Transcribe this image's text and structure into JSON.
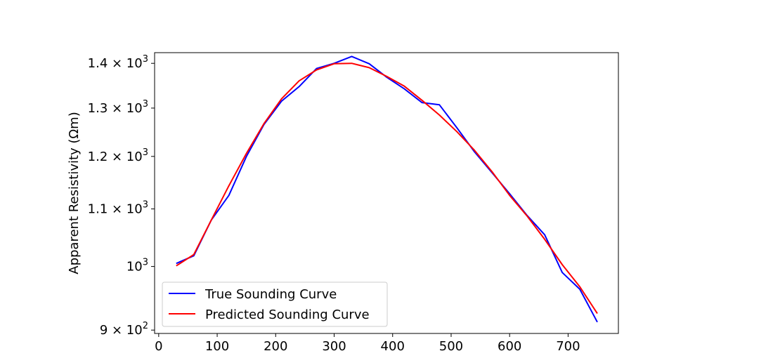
{
  "chart_data": {
    "type": "line",
    "ylabel": "Apparent Resistivity (Ωm)",
    "yscale": "log",
    "xlim": [
      -7,
      786
    ],
    "ylim": [
      895,
      1425
    ],
    "x_ticks": [
      0,
      100,
      200,
      300,
      400,
      500,
      600,
      700
    ],
    "y_ticks": [
      {
        "value": 900,
        "mant": "9",
        "exp": "2"
      },
      {
        "value": 1000,
        "mant": "",
        "exp": "3"
      },
      {
        "value": 1100,
        "mant": "1.1",
        "exp": "3"
      },
      {
        "value": 1200,
        "mant": "1.2",
        "exp": "3"
      },
      {
        "value": 1300,
        "mant": "1.3",
        "exp": "3"
      },
      {
        "value": 1400,
        "mant": "1.4",
        "exp": "3"
      }
    ],
    "grid": false,
    "legend_position": "lower-left",
    "series": [
      {
        "name": "True Sounding Curve",
        "color": "#0000ff",
        "x": [
          30,
          60,
          90,
          120,
          150,
          180,
          210,
          240,
          270,
          300,
          330,
          360,
          390,
          420,
          450,
          480,
          510,
          540,
          570,
          600,
          630,
          660,
          690,
          720,
          750
        ],
        "y": [
          1005,
          1018,
          1080,
          1125,
          1200,
          1265,
          1315,
          1347,
          1388,
          1400,
          1416,
          1399,
          1368,
          1342,
          1312,
          1307,
          1258,
          1209,
          1168,
          1128,
          1088,
          1054,
          990,
          963,
          912
        ]
      },
      {
        "name": "Predicted Sounding Curve",
        "color": "#ff0000",
        "x": [
          30,
          60,
          90,
          120,
          150,
          180,
          210,
          240,
          270,
          300,
          330,
          360,
          390,
          420,
          450,
          480,
          510,
          540,
          570,
          600,
          630,
          660,
          690,
          720,
          750
        ],
        "y": [
          1001,
          1020,
          1080,
          1143,
          1206,
          1267,
          1320,
          1360,
          1385,
          1399,
          1400,
          1390,
          1370,
          1348,
          1317,
          1285,
          1250,
          1212,
          1170,
          1125,
          1087,
          1046,
          1003,
          967,
          925
        ]
      }
    ]
  }
}
